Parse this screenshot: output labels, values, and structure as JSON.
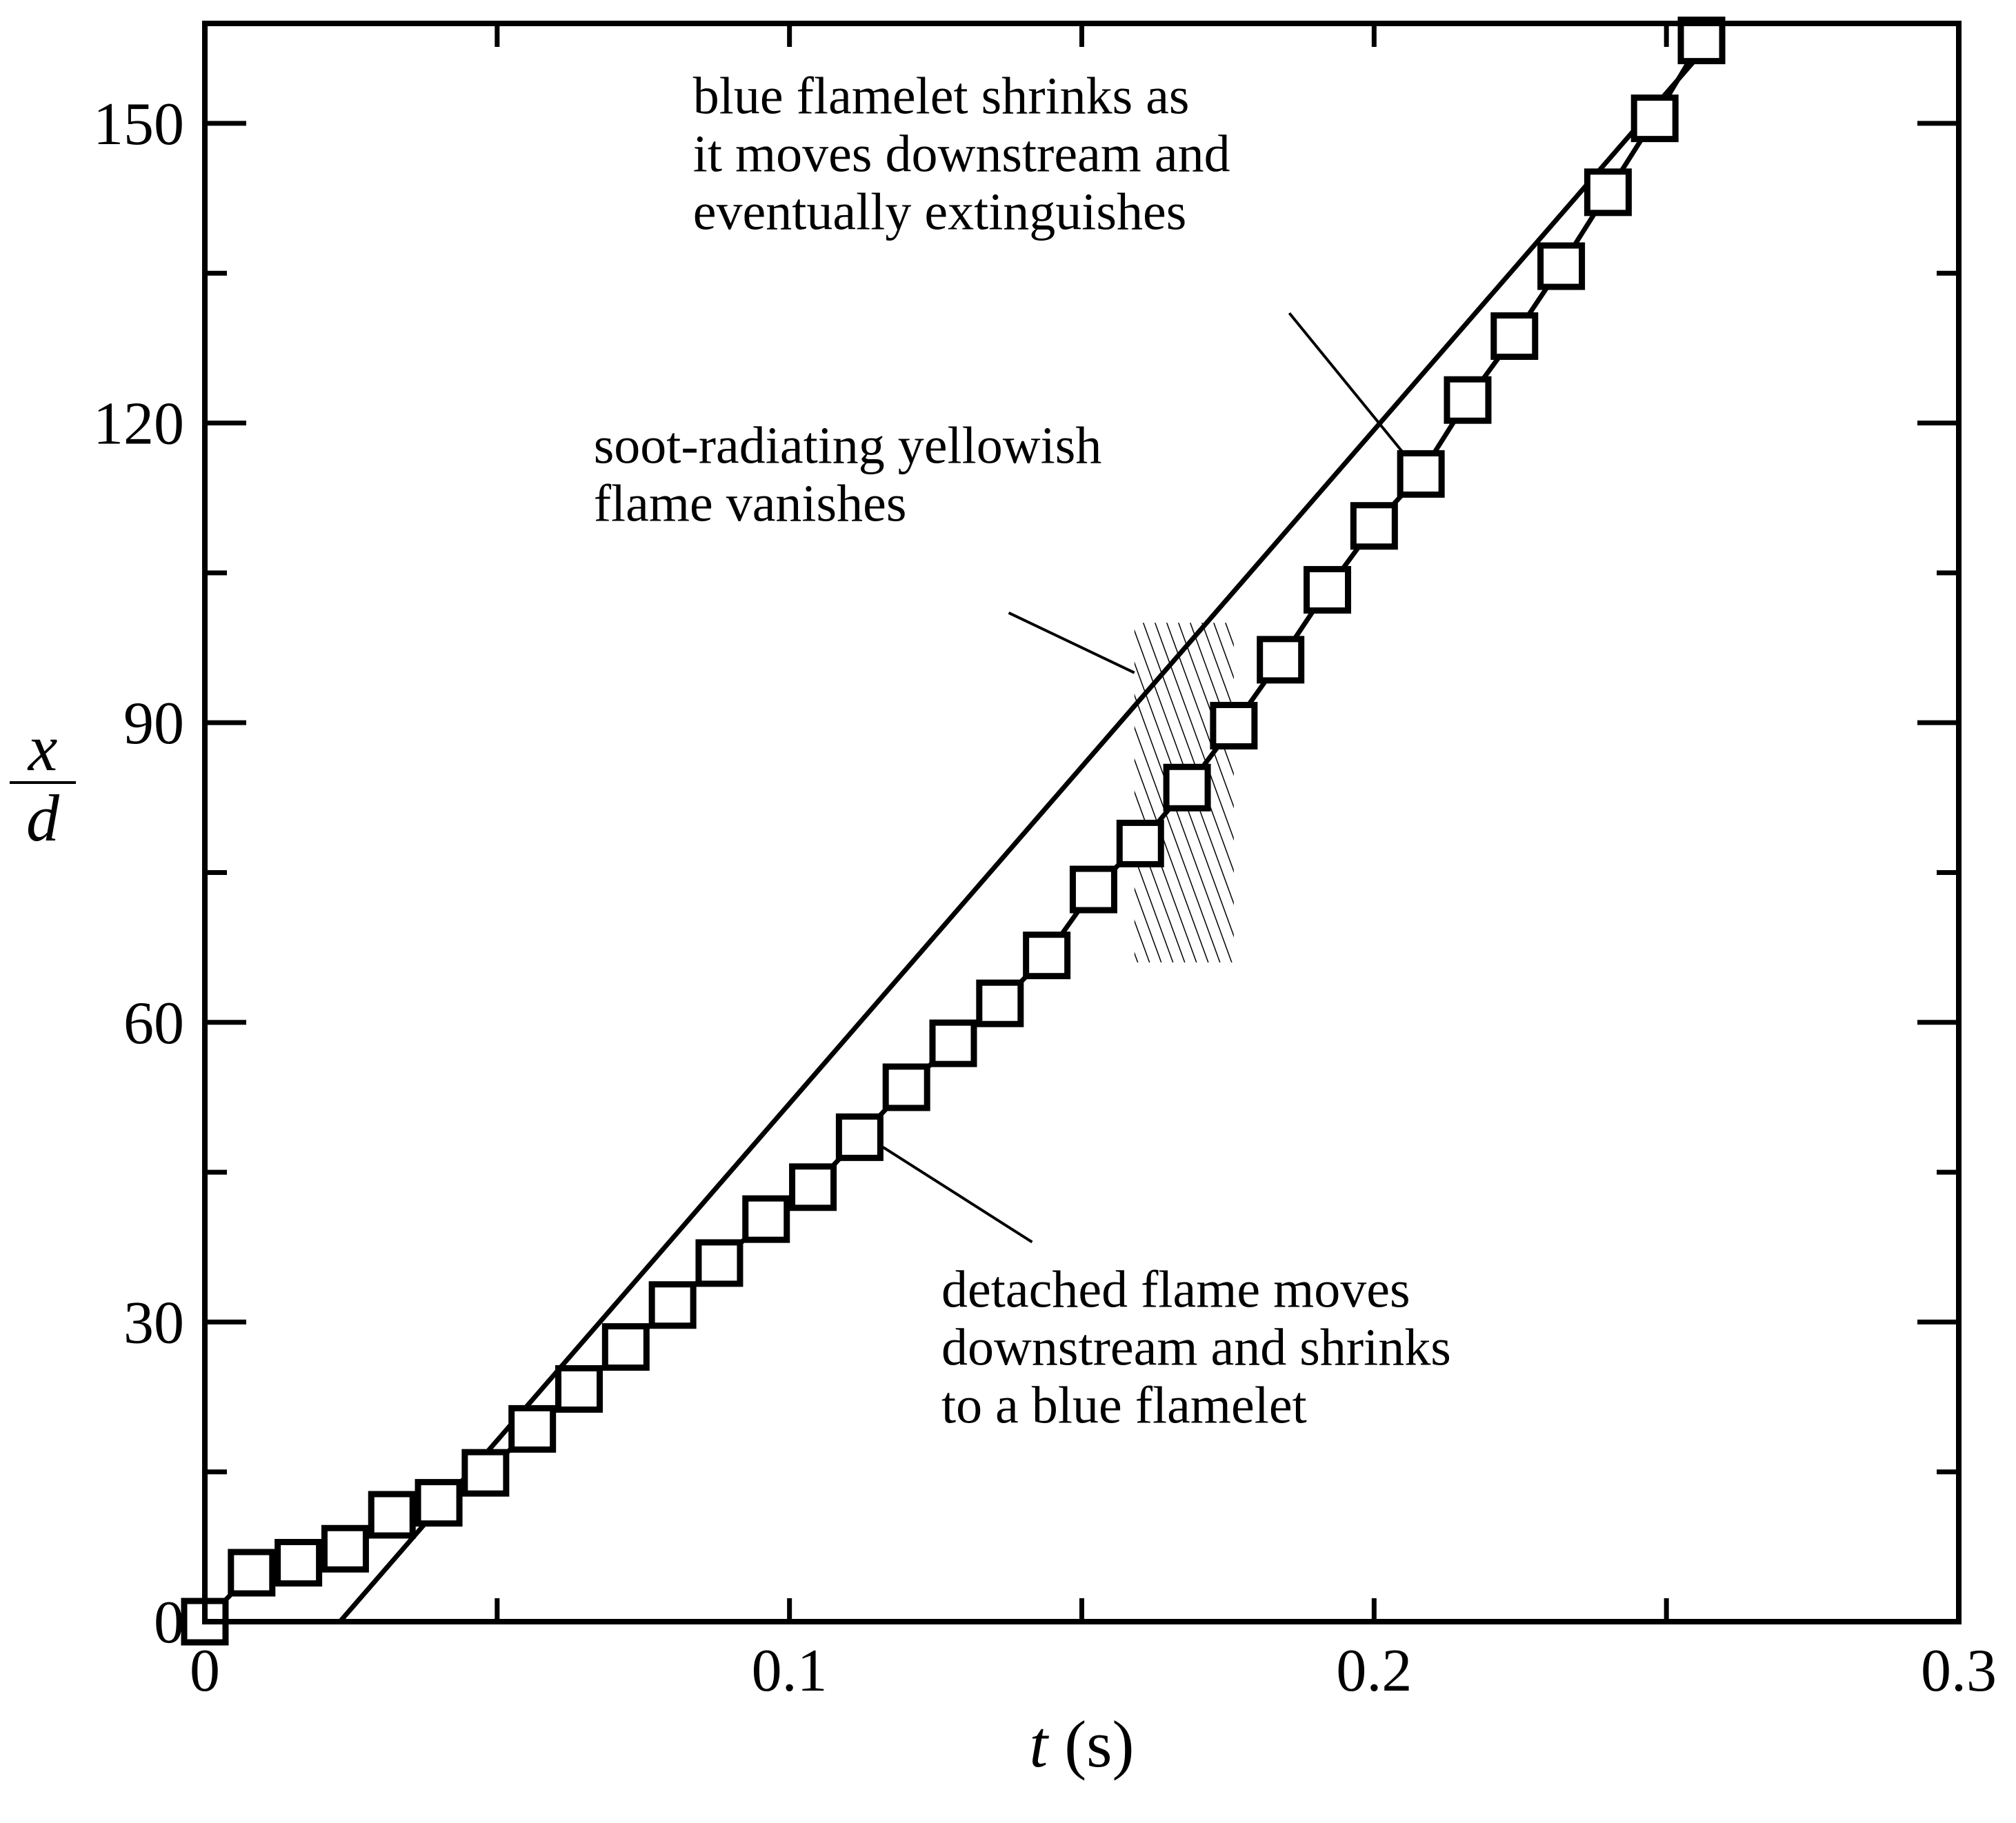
{
  "chart_data": {
    "type": "scatter",
    "xlabel_var": "t",
    "xlabel_unit": "(s)",
    "ylabel_num": "x",
    "ylabel_den": "d",
    "xlim": [
      0,
      0.3
    ],
    "ylim": [
      0,
      160
    ],
    "x_ticks": [
      0,
      0.1,
      0.2,
      0.3
    ],
    "x_tick_labels": [
      "0",
      "0.1",
      "0.2",
      "0.3"
    ],
    "x_minor_ticks": [
      0.05,
      0.15,
      0.25
    ],
    "y_ticks": [
      0,
      30,
      60,
      90,
      120,
      150
    ],
    "y_tick_labels": [
      "0",
      "30",
      "60",
      "90",
      "120",
      "150"
    ],
    "y_minor_ticks": [
      15,
      45,
      75,
      105,
      135
    ],
    "grid": false,
    "series": [
      {
        "marker": "open-square",
        "x": [
          0.0,
          0.008,
          0.016,
          0.024,
          0.032,
          0.04,
          0.048,
          0.056,
          0.064,
          0.072,
          0.08,
          0.088,
          0.096,
          0.104,
          0.112,
          0.12,
          0.128,
          0.136,
          0.144,
          0.152,
          0.16,
          0.168,
          0.176,
          0.184,
          0.192,
          0.2,
          0.208,
          0.216,
          0.224,
          0.232,
          0.24,
          0.248,
          0.256
        ],
        "y": [
          0.0,
          4.9,
          5.9,
          7.3,
          10.7,
          11.9,
          14.9,
          19.3,
          23.3,
          27.5,
          31.7,
          35.9,
          40.3,
          43.5,
          48.5,
          53.5,
          57.9,
          61.9,
          66.7,
          73.3,
          77.9,
          83.5,
          89.7,
          96.3,
          103.3,
          109.7,
          114.9,
          122.3,
          128.7,
          135.7,
          143.1,
          150.5,
          158.3
        ]
      }
    ],
    "fit_line": {
      "x": [
        0.0231,
        0.2578
      ],
      "y": [
        0,
        158.3
      ]
    },
    "shaded_region": {
      "x": [
        0.159,
        0.176
      ],
      "y": [
        66,
        100
      ],
      "pattern": "diagonal-hatch"
    },
    "annotations": [
      {
        "lines": [
          "blue flamelet shrinks as",
          "it moves downstream and",
          "eventually extinguishes"
        ],
        "text_x": 0.0835,
        "text_y": 151,
        "leader_from": [
          0.1855,
          131
        ],
        "leader_to": [
          0.205,
          117
        ]
      },
      {
        "lines": [
          "soot-radiating yellowish",
          "flame vanishes"
        ],
        "text_x": 0.0665,
        "text_y": 116,
        "leader_from": [
          0.1375,
          101
        ],
        "leader_to": [
          0.159,
          95
        ]
      },
      {
        "lines": [
          "detached flame moves",
          "downstream and shrinks",
          "to a blue flamelet"
        ],
        "text_x": 0.126,
        "text_y": 31.5,
        "leader_from": [
          0.1415,
          38
        ],
        "leader_to": [
          0.116,
          47.5
        ]
      }
    ]
  }
}
